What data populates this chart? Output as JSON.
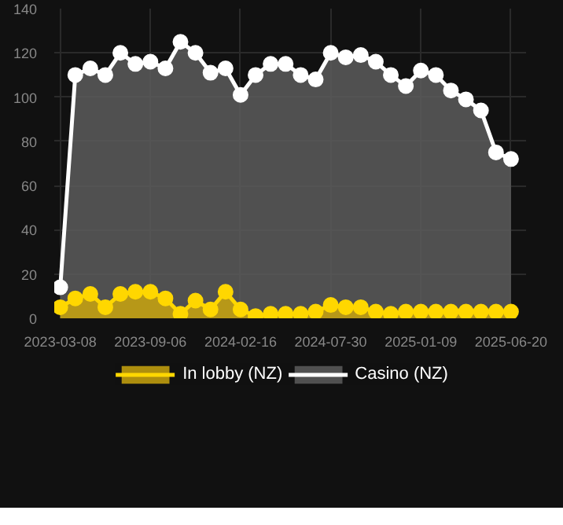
{
  "chart_data": {
    "type": "area",
    "categories": [
      "2023-03-08",
      null,
      null,
      null,
      null,
      null,
      "2023-09-06",
      null,
      null,
      null,
      null,
      null,
      "2024-02-16",
      null,
      null,
      null,
      null,
      null,
      "2024-07-30",
      null,
      null,
      null,
      null,
      null,
      "2025-01-09",
      null,
      null,
      null,
      null,
      null,
      "2025-06-20"
    ],
    "series": [
      {
        "name": "In lobby (NZ)",
        "color": "#ffd700",
        "values": [
          5,
          9,
          11,
          5,
          11,
          12,
          12,
          9,
          2,
          8,
          4,
          12,
          4,
          1,
          2,
          2,
          2,
          3,
          6,
          5,
          5,
          3,
          2,
          3,
          3,
          3,
          3,
          3,
          3,
          3,
          3
        ]
      },
      {
        "name": "Casino (NZ)",
        "color": "#ffffff",
        "values": [
          14,
          110,
          113,
          110,
          120,
          115,
          116,
          113,
          125,
          120,
          111,
          113,
          101,
          110,
          115,
          115,
          110,
          108,
          120,
          118,
          119,
          116,
          110,
          105,
          112,
          110,
          103,
          99,
          94,
          75,
          72
        ]
      }
    ],
    "ylim": [
      0,
      140
    ],
    "yticks": [
      0,
      20,
      40,
      60,
      80,
      100,
      120,
      140
    ],
    "grid": true,
    "legend": "bottom",
    "marker": "circle"
  }
}
